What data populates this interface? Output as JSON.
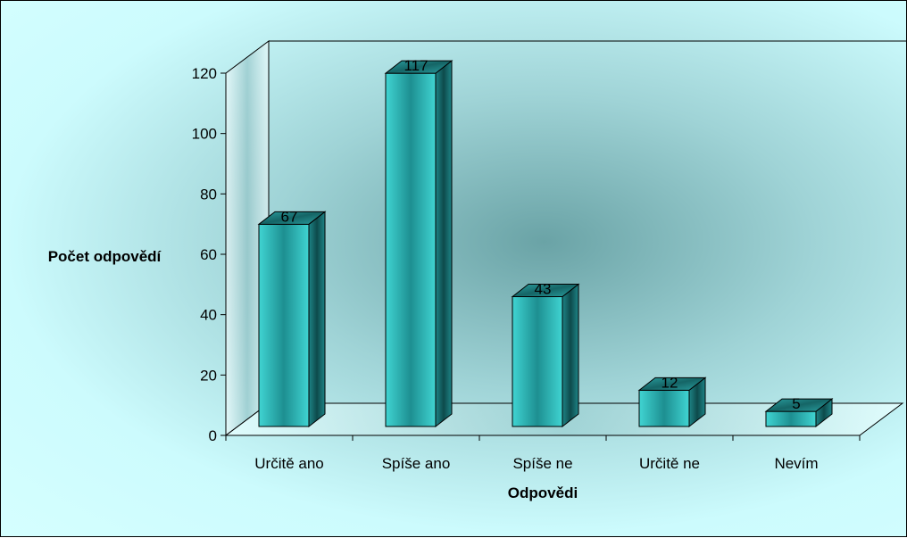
{
  "chart_data": {
    "type": "bar",
    "categories": [
      "Určitě ano",
      "Spíše ano",
      "Spíše ne",
      "Určitě ne",
      "Nevím"
    ],
    "values": [
      67,
      117,
      43,
      12,
      5
    ],
    "data_labels": [
      "67",
      "117",
      "43",
      "12",
      "5"
    ],
    "xlabel": "Odpovědi",
    "ylabel": "Počet odpovědí",
    "ylim": [
      0,
      120
    ],
    "yticks": [
      "0",
      "20",
      "40",
      "60",
      "80",
      "100",
      "120"
    ],
    "grid": false,
    "style": "3d-column",
    "bar_color": "#33cccc"
  }
}
